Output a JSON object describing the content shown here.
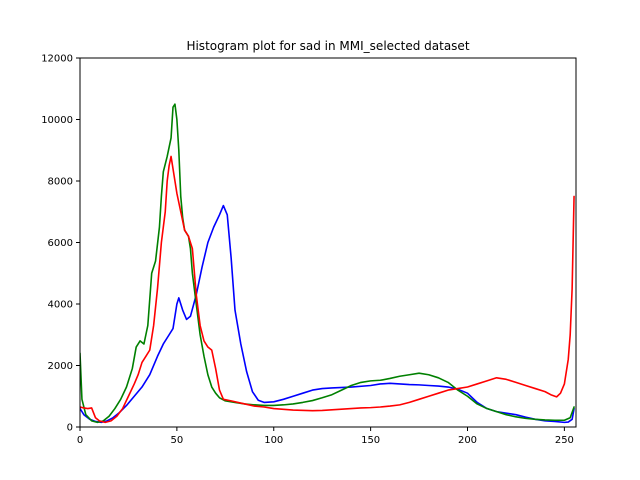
{
  "chart_data": {
    "type": "line",
    "title": "Histogram plot for sad in MMI_selected dataset",
    "xlabel": "",
    "ylabel": "",
    "xlim": [
      0,
      256
    ],
    "ylim": [
      0,
      12000
    ],
    "x_ticks": [
      0,
      50,
      100,
      150,
      200,
      250
    ],
    "y_ticks": [
      0,
      2000,
      4000,
      6000,
      8000,
      10000,
      12000
    ],
    "grid": false,
    "legend": "none",
    "series": [
      {
        "color": "#0000ff",
        "points": [
          [
            0,
            600
          ],
          [
            2,
            400
          ],
          [
            5,
            250
          ],
          [
            8,
            180
          ],
          [
            11,
            150
          ],
          [
            14,
            200
          ],
          [
            17,
            300
          ],
          [
            20,
            450
          ],
          [
            24,
            700
          ],
          [
            28,
            1000
          ],
          [
            32,
            1300
          ],
          [
            36,
            1700
          ],
          [
            40,
            2300
          ],
          [
            43,
            2700
          ],
          [
            46,
            3000
          ],
          [
            48,
            3200
          ],
          [
            50,
            4000
          ],
          [
            51,
            4200
          ],
          [
            53,
            3800
          ],
          [
            55,
            3500
          ],
          [
            57,
            3600
          ],
          [
            60,
            4300
          ],
          [
            63,
            5200
          ],
          [
            66,
            6000
          ],
          [
            69,
            6500
          ],
          [
            72,
            6900
          ],
          [
            74,
            7200
          ],
          [
            76,
            6900
          ],
          [
            78,
            5500
          ],
          [
            80,
            3800
          ],
          [
            83,
            2700
          ],
          [
            86,
            1800
          ],
          [
            89,
            1150
          ],
          [
            92,
            870
          ],
          [
            95,
            800
          ],
          [
            100,
            820
          ],
          [
            105,
            900
          ],
          [
            110,
            1000
          ],
          [
            115,
            1100
          ],
          [
            120,
            1200
          ],
          [
            125,
            1250
          ],
          [
            130,
            1270
          ],
          [
            140,
            1300
          ],
          [
            150,
            1350
          ],
          [
            155,
            1400
          ],
          [
            160,
            1420
          ],
          [
            165,
            1400
          ],
          [
            170,
            1380
          ],
          [
            175,
            1370
          ],
          [
            180,
            1350
          ],
          [
            185,
            1330
          ],
          [
            190,
            1300
          ],
          [
            195,
            1230
          ],
          [
            200,
            1100
          ],
          [
            205,
            800
          ],
          [
            210,
            600
          ],
          [
            215,
            500
          ],
          [
            220,
            450
          ],
          [
            225,
            400
          ],
          [
            230,
            320
          ],
          [
            235,
            250
          ],
          [
            240,
            200
          ],
          [
            245,
            180
          ],
          [
            250,
            150
          ],
          [
            252,
            160
          ],
          [
            254,
            250
          ],
          [
            255,
            600
          ]
        ]
      },
      {
        "color": "#008000",
        "points": [
          [
            0,
            2400
          ],
          [
            1,
            900
          ],
          [
            3,
            400
          ],
          [
            6,
            200
          ],
          [
            9,
            150
          ],
          [
            12,
            200
          ],
          [
            15,
            350
          ],
          [
            18,
            600
          ],
          [
            21,
            900
          ],
          [
            24,
            1300
          ],
          [
            27,
            1900
          ],
          [
            29,
            2600
          ],
          [
            31,
            2800
          ],
          [
            33,
            2700
          ],
          [
            35,
            3300
          ],
          [
            37,
            5000
          ],
          [
            39,
            5400
          ],
          [
            41,
            6500
          ],
          [
            42,
            7500
          ],
          [
            43,
            8300
          ],
          [
            45,
            8800
          ],
          [
            47,
            9400
          ],
          [
            48,
            10400
          ],
          [
            49,
            10500
          ],
          [
            50,
            10000
          ],
          [
            51,
            9000
          ],
          [
            52,
            7500
          ],
          [
            53,
            6800
          ],
          [
            54,
            6400
          ],
          [
            56,
            6200
          ],
          [
            57,
            5800
          ],
          [
            58,
            5000
          ],
          [
            60,
            4000
          ],
          [
            62,
            3000
          ],
          [
            64,
            2300
          ],
          [
            66,
            1700
          ],
          [
            68,
            1300
          ],
          [
            70,
            1100
          ],
          [
            72,
            950
          ],
          [
            75,
            850
          ],
          [
            80,
            800
          ],
          [
            85,
            750
          ],
          [
            90,
            720
          ],
          [
            95,
            700
          ],
          [
            100,
            700
          ],
          [
            105,
            720
          ],
          [
            110,
            750
          ],
          [
            115,
            800
          ],
          [
            120,
            860
          ],
          [
            125,
            950
          ],
          [
            130,
            1050
          ],
          [
            135,
            1200
          ],
          [
            140,
            1350
          ],
          [
            145,
            1450
          ],
          [
            150,
            1500
          ],
          [
            155,
            1520
          ],
          [
            160,
            1580
          ],
          [
            165,
            1650
          ],
          [
            170,
            1700
          ],
          [
            175,
            1750
          ],
          [
            180,
            1700
          ],
          [
            185,
            1600
          ],
          [
            190,
            1450
          ],
          [
            195,
            1200
          ],
          [
            200,
            1000
          ],
          [
            205,
            750
          ],
          [
            210,
            600
          ],
          [
            215,
            500
          ],
          [
            220,
            400
          ],
          [
            225,
            330
          ],
          [
            230,
            280
          ],
          [
            235,
            250
          ],
          [
            240,
            230
          ],
          [
            245,
            220
          ],
          [
            250,
            220
          ],
          [
            253,
            300
          ],
          [
            255,
            650
          ]
        ]
      },
      {
        "color": "#ff0000",
        "points": [
          [
            0,
            650
          ],
          [
            2,
            620
          ],
          [
            4,
            600
          ],
          [
            6,
            620
          ],
          [
            8,
            300
          ],
          [
            10,
            200
          ],
          [
            13,
            150
          ],
          [
            16,
            200
          ],
          [
            19,
            350
          ],
          [
            22,
            600
          ],
          [
            25,
            1000
          ],
          [
            28,
            1400
          ],
          [
            30,
            1700
          ],
          [
            32,
            2100
          ],
          [
            34,
            2300
          ],
          [
            36,
            2500
          ],
          [
            38,
            3300
          ],
          [
            40,
            4500
          ],
          [
            42,
            6000
          ],
          [
            44,
            7000
          ],
          [
            45,
            8000
          ],
          [
            46,
            8500
          ],
          [
            47,
            8800
          ],
          [
            48,
            8400
          ],
          [
            50,
            7600
          ],
          [
            52,
            7000
          ],
          [
            54,
            6400
          ],
          [
            56,
            6200
          ],
          [
            58,
            5800
          ],
          [
            60,
            4300
          ],
          [
            62,
            3300
          ],
          [
            64,
            2800
          ],
          [
            66,
            2600
          ],
          [
            68,
            2500
          ],
          [
            70,
            1900
          ],
          [
            72,
            1200
          ],
          [
            74,
            900
          ],
          [
            78,
            850
          ],
          [
            85,
            750
          ],
          [
            90,
            680
          ],
          [
            95,
            650
          ],
          [
            100,
            600
          ],
          [
            110,
            550
          ],
          [
            120,
            530
          ],
          [
            125,
            540
          ],
          [
            130,
            560
          ],
          [
            135,
            580
          ],
          [
            140,
            600
          ],
          [
            145,
            620
          ],
          [
            150,
            630
          ],
          [
            155,
            650
          ],
          [
            160,
            680
          ],
          [
            165,
            720
          ],
          [
            170,
            800
          ],
          [
            175,
            900
          ],
          [
            180,
            1000
          ],
          [
            185,
            1100
          ],
          [
            190,
            1200
          ],
          [
            195,
            1250
          ],
          [
            200,
            1300
          ],
          [
            205,
            1400
          ],
          [
            210,
            1500
          ],
          [
            215,
            1600
          ],
          [
            220,
            1550
          ],
          [
            225,
            1450
          ],
          [
            230,
            1350
          ],
          [
            235,
            1250
          ],
          [
            240,
            1150
          ],
          [
            243,
            1050
          ],
          [
            246,
            980
          ],
          [
            248,
            1100
          ],
          [
            250,
            1400
          ],
          [
            252,
            2200
          ],
          [
            253,
            3000
          ],
          [
            254,
            4500
          ],
          [
            255,
            7500
          ]
        ]
      }
    ]
  }
}
